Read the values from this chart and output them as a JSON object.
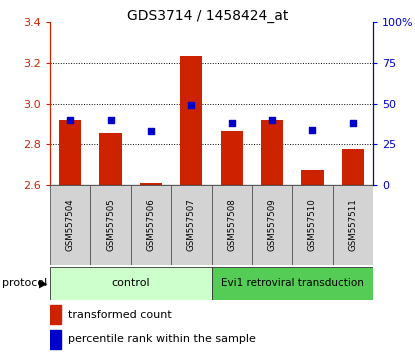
{
  "title": "GDS3714 / 1458424_at",
  "samples": [
    "GSM557504",
    "GSM557505",
    "GSM557506",
    "GSM557507",
    "GSM557508",
    "GSM557509",
    "GSM557510",
    "GSM557511"
  ],
  "bar_values": [
    2.92,
    2.855,
    2.61,
    3.235,
    2.865,
    2.92,
    2.675,
    2.775
  ],
  "bar_base": 2.6,
  "dot_percentiles": [
    40,
    40,
    33,
    49,
    38,
    40,
    34,
    38
  ],
  "ylim_left": [
    2.6,
    3.4
  ],
  "ylim_right": [
    0,
    100
  ],
  "yticks_left": [
    2.6,
    2.8,
    3.0,
    3.2,
    3.4
  ],
  "yticks_right": [
    0,
    25,
    50,
    75,
    100
  ],
  "ytick_right_labels": [
    "0",
    "25",
    "50",
    "75",
    "100%"
  ],
  "bar_color": "#cc2200",
  "dot_color": "#0000cc",
  "protocol_label": "protocol",
  "group1_label": "control",
  "group2_label": "Evi1 retroviral transduction",
  "group1_color": "#ccffcc",
  "group2_color": "#55cc55",
  "group1_samples": 4,
  "group2_samples": 4,
  "legend_bar_label": "transformed count",
  "legend_dot_label": "percentile rank within the sample",
  "gridlines": [
    2.8,
    3.0,
    3.2
  ]
}
